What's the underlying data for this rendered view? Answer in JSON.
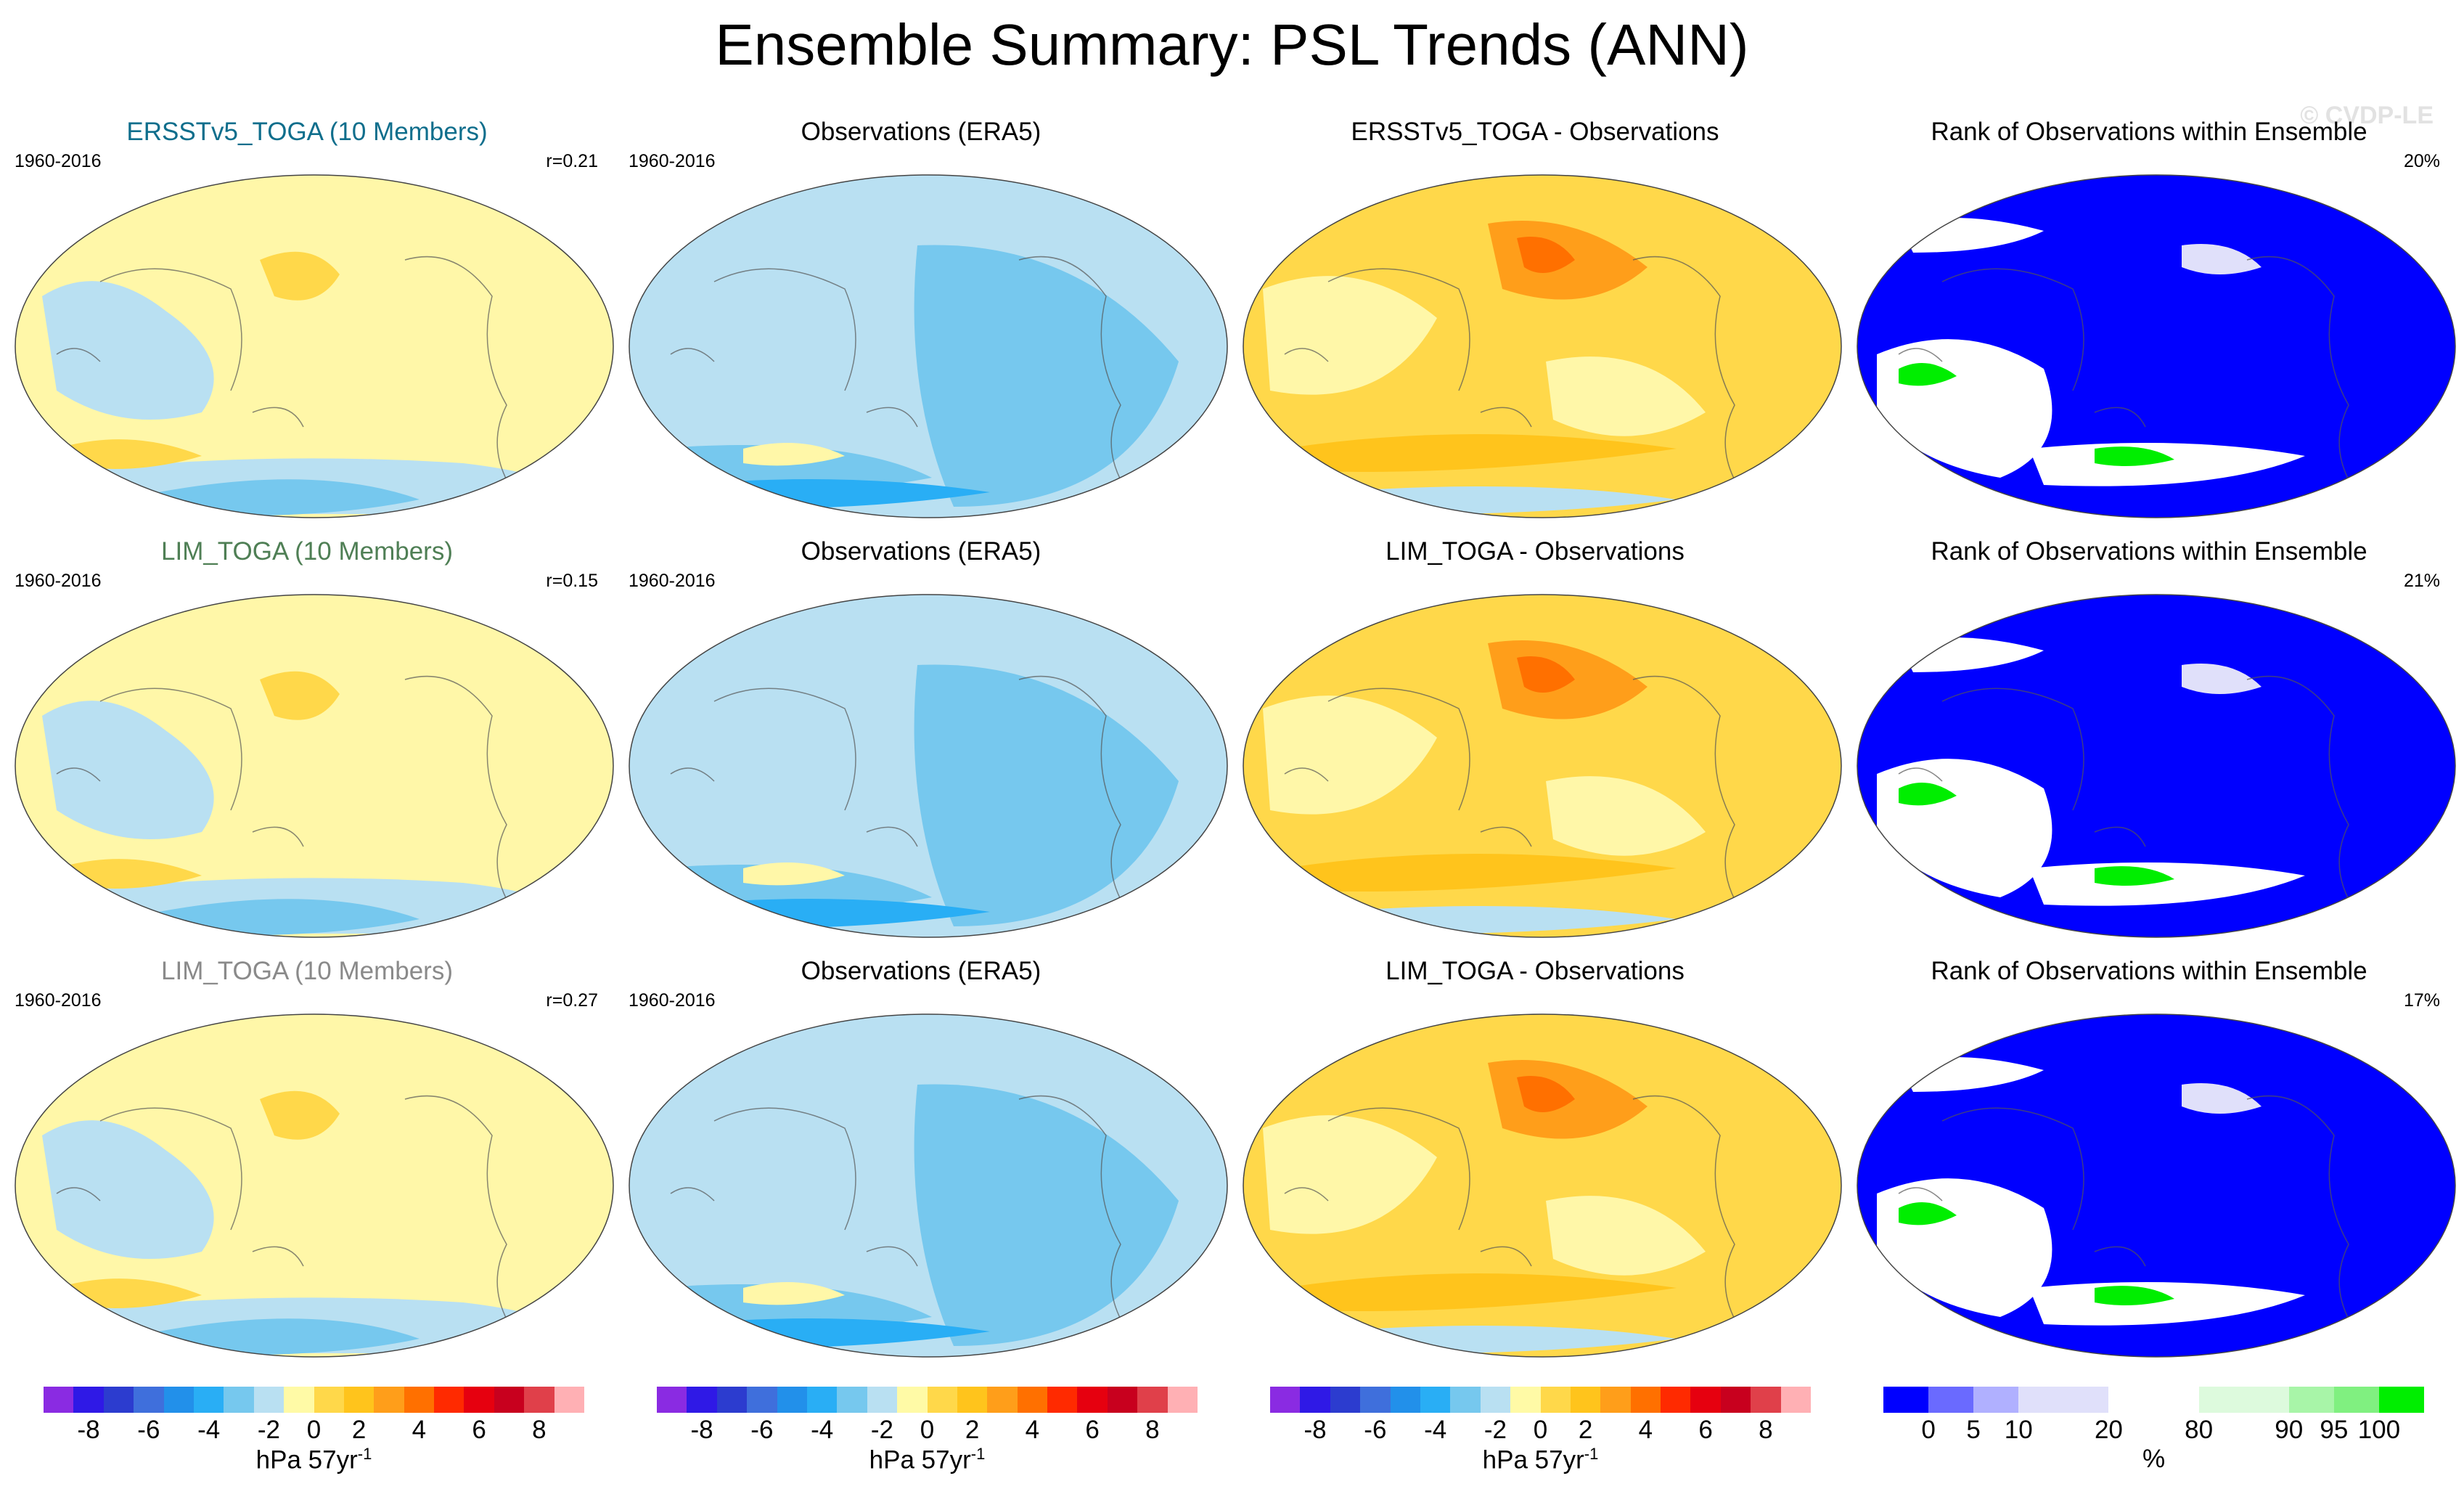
{
  "figure_title": "Ensemble Summary: PSL Trends (ANN)",
  "watermark": "© CVDP-LE",
  "rows": [
    {
      "panels": [
        {
          "title": "ERSSTv5_TOGA (10 Members)",
          "title_color": "#0f6e8c",
          "left_text": "1960-2016",
          "right_text": "r=0.21",
          "map_kind": "ensemble"
        },
        {
          "title": "Observations (ERA5)",
          "title_color": "#000000",
          "left_text": "1960-2016",
          "right_text": "",
          "map_kind": "obs"
        },
        {
          "title": "ERSSTv5_TOGA - Observations",
          "title_color": "#000000",
          "left_text": "",
          "right_text": "",
          "map_kind": "diff"
        },
        {
          "title": "Rank of Observations within Ensemble",
          "title_color": "#000000",
          "left_text": "",
          "right_text": "20%",
          "map_kind": "rank"
        }
      ]
    },
    {
      "panels": [
        {
          "title": "LIM_TOGA (10 Members)",
          "title_color": "#4f7f55",
          "left_text": "1960-2016",
          "right_text": "r=0.15",
          "map_kind": "ensemble"
        },
        {
          "title": "Observations (ERA5)",
          "title_color": "#000000",
          "left_text": "1960-2016",
          "right_text": "",
          "map_kind": "obs"
        },
        {
          "title": "LIM_TOGA - Observations",
          "title_color": "#000000",
          "left_text": "",
          "right_text": "",
          "map_kind": "diff"
        },
        {
          "title": "Rank of Observations within Ensemble",
          "title_color": "#000000",
          "left_text": "",
          "right_text": "21%",
          "map_kind": "rank"
        }
      ]
    },
    {
      "panels": [
        {
          "title": "LIM_TOGA (10 Members)",
          "title_color": "#8a8a8a",
          "left_text": "1960-2016",
          "right_text": "r=0.27",
          "map_kind": "ensemble"
        },
        {
          "title": "Observations (ERA5)",
          "title_color": "#000000",
          "left_text": "1960-2016",
          "right_text": "",
          "map_kind": "obs"
        },
        {
          "title": "LIM_TOGA - Observations",
          "title_color": "#000000",
          "left_text": "",
          "right_text": "",
          "map_kind": "diff"
        },
        {
          "title": "Rank of Observations within Ensemble",
          "title_color": "#000000",
          "left_text": "",
          "right_text": "17%",
          "map_kind": "rank"
        }
      ]
    }
  ],
  "trend_colorbar": {
    "colors": [
      "#8a2be2",
      "#2f19e6",
      "#2c3ccf",
      "#3f6fdc",
      "#2290ea",
      "#29aef5",
      "#76c8ee",
      "#b9e0f2",
      "#fffaa6",
      "#ffd84a",
      "#ffc41c",
      "#ff9e1a",
      "#ff7000",
      "#ff2a00",
      "#e6000f",
      "#c8001e",
      "#e0404a",
      "#ffb0b4"
    ],
    "ticks": [
      "-8",
      "-6",
      "-4",
      "-2",
      "0",
      "2",
      "4",
      "6",
      "8"
    ],
    "label": "hPa 57yr",
    "label_sup": "-1"
  },
  "rank_colorbar": {
    "colors": [
      "#0000ff",
      "#6a6aff",
      "#b0b0ff",
      "#e0e0fa",
      "#e0e0fa",
      "#ffffff",
      "#ffffff",
      "#ddfadd",
      "#ddfadd",
      "#a8f5a8",
      "#80f080",
      "#00ee00"
    ],
    "ticks": [
      "0",
      "5",
      "10",
      "20",
      "80",
      "90",
      "95",
      "100"
    ],
    "label": "%"
  }
}
